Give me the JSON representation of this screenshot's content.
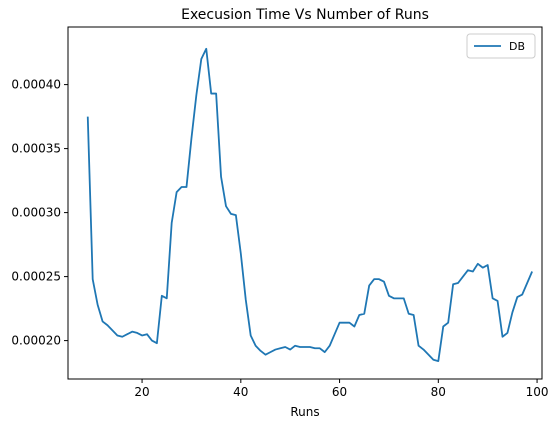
{
  "chart_data": {
    "type": "line",
    "title": "Execusion Time Vs Number of Runs",
    "xlabel": "Runs",
    "ylabel": "",
    "xlim": [
      5,
      101
    ],
    "ylim": [
      0.00017,
      0.000445
    ],
    "x_ticks": [
      20,
      40,
      60,
      80,
      100
    ],
    "y_ticks": [
      0.0002,
      0.00025,
      0.0003,
      0.00035,
      0.0004
    ],
    "y_tick_labels": [
      "0.00020",
      "0.00025",
      "0.00030",
      "0.00035",
      "0.00040"
    ],
    "grid": false,
    "legend": "upper-right",
    "series": [
      {
        "name": "DB",
        "color": "#1f77b4",
        "x": [
          9,
          10,
          11,
          12,
          13,
          14,
          15,
          16,
          17,
          18,
          19,
          20,
          21,
          22,
          23,
          24,
          25,
          26,
          27,
          28,
          29,
          30,
          31,
          32,
          33,
          34,
          35,
          36,
          37,
          38,
          39,
          40,
          41,
          42,
          43,
          44,
          45,
          46,
          47,
          48,
          49,
          50,
          51,
          52,
          53,
          54,
          55,
          56,
          57,
          58,
          59,
          60,
          61,
          62,
          63,
          64,
          65,
          66,
          67,
          68,
          69,
          70,
          71,
          72,
          73,
          74,
          75,
          76,
          77,
          78,
          79,
          80,
          81,
          82,
          83,
          84,
          85,
          86,
          87,
          88,
          89,
          90,
          91,
          92,
          93,
          94,
          95,
          96,
          97,
          98,
          99
        ],
        "values": [
          0.000375,
          0.000248,
          0.000228,
          0.000215,
          0.000212,
          0.000208,
          0.000204,
          0.000203,
          0.000205,
          0.000207,
          0.000206,
          0.000204,
          0.000205,
          0.0002,
          0.000198,
          0.000235,
          0.000233,
          0.000292,
          0.000316,
          0.00032,
          0.00032,
          0.000358,
          0.000392,
          0.00042,
          0.000428,
          0.000393,
          0.000393,
          0.000328,
          0.000305,
          0.000299,
          0.000298,
          0.000268,
          0.000232,
          0.000204,
          0.000196,
          0.000192,
          0.000189,
          0.000191,
          0.000193,
          0.000194,
          0.000195,
          0.000193,
          0.000196,
          0.000195,
          0.000195,
          0.000195,
          0.000194,
          0.000194,
          0.000191,
          0.000196,
          0.000205,
          0.000214,
          0.000214,
          0.000214,
          0.000211,
          0.00022,
          0.000221,
          0.000243,
          0.000248,
          0.000248,
          0.000246,
          0.000235,
          0.000233,
          0.000233,
          0.000233,
          0.000221,
          0.00022,
          0.000196,
          0.000193,
          0.000189,
          0.000185,
          0.000184,
          0.000211,
          0.000214,
          0.000244,
          0.000245,
          0.00025,
          0.000255,
          0.000254,
          0.00026,
          0.000257,
          0.000259,
          0.000233,
          0.000231,
          0.000203,
          0.000206,
          0.000222,
          0.000234,
          0.000236,
          0.000245,
          0.000254
        ]
      }
    ]
  }
}
